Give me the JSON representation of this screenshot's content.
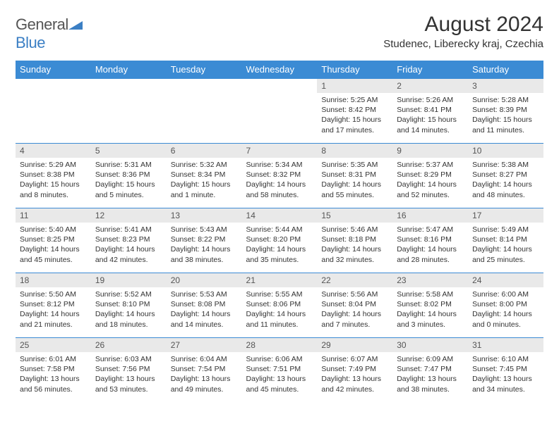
{
  "logo": {
    "word1": "General",
    "word2": "Blue"
  },
  "title": "August 2024",
  "location": "Studenec, Liberecky kraj, Czechia",
  "colors": {
    "header_bg": "#3b8bd4",
    "header_text": "#ffffff",
    "daynum_bg": "#e9e9e9",
    "border": "#3b8bd4",
    "text": "#333333",
    "logo_gray": "#555555",
    "logo_blue": "#3b7fc4"
  },
  "day_headers": [
    "Sunday",
    "Monday",
    "Tuesday",
    "Wednesday",
    "Thursday",
    "Friday",
    "Saturday"
  ],
  "weeks": [
    [
      {
        "empty": true
      },
      {
        "empty": true
      },
      {
        "empty": true
      },
      {
        "empty": true
      },
      {
        "n": "1",
        "sr": "5:25 AM",
        "ss": "8:42 PM",
        "dl": "15 hours and 17 minutes."
      },
      {
        "n": "2",
        "sr": "5:26 AM",
        "ss": "8:41 PM",
        "dl": "15 hours and 14 minutes."
      },
      {
        "n": "3",
        "sr": "5:28 AM",
        "ss": "8:39 PM",
        "dl": "15 hours and 11 minutes."
      }
    ],
    [
      {
        "n": "4",
        "sr": "5:29 AM",
        "ss": "8:38 PM",
        "dl": "15 hours and 8 minutes."
      },
      {
        "n": "5",
        "sr": "5:31 AM",
        "ss": "8:36 PM",
        "dl": "15 hours and 5 minutes."
      },
      {
        "n": "6",
        "sr": "5:32 AM",
        "ss": "8:34 PM",
        "dl": "15 hours and 1 minute."
      },
      {
        "n": "7",
        "sr": "5:34 AM",
        "ss": "8:32 PM",
        "dl": "14 hours and 58 minutes."
      },
      {
        "n": "8",
        "sr": "5:35 AM",
        "ss": "8:31 PM",
        "dl": "14 hours and 55 minutes."
      },
      {
        "n": "9",
        "sr": "5:37 AM",
        "ss": "8:29 PM",
        "dl": "14 hours and 52 minutes."
      },
      {
        "n": "10",
        "sr": "5:38 AM",
        "ss": "8:27 PM",
        "dl": "14 hours and 48 minutes."
      }
    ],
    [
      {
        "n": "11",
        "sr": "5:40 AM",
        "ss": "8:25 PM",
        "dl": "14 hours and 45 minutes."
      },
      {
        "n": "12",
        "sr": "5:41 AM",
        "ss": "8:23 PM",
        "dl": "14 hours and 42 minutes."
      },
      {
        "n": "13",
        "sr": "5:43 AM",
        "ss": "8:22 PM",
        "dl": "14 hours and 38 minutes."
      },
      {
        "n": "14",
        "sr": "5:44 AM",
        "ss": "8:20 PM",
        "dl": "14 hours and 35 minutes."
      },
      {
        "n": "15",
        "sr": "5:46 AM",
        "ss": "8:18 PM",
        "dl": "14 hours and 32 minutes."
      },
      {
        "n": "16",
        "sr": "5:47 AM",
        "ss": "8:16 PM",
        "dl": "14 hours and 28 minutes."
      },
      {
        "n": "17",
        "sr": "5:49 AM",
        "ss": "8:14 PM",
        "dl": "14 hours and 25 minutes."
      }
    ],
    [
      {
        "n": "18",
        "sr": "5:50 AM",
        "ss": "8:12 PM",
        "dl": "14 hours and 21 minutes."
      },
      {
        "n": "19",
        "sr": "5:52 AM",
        "ss": "8:10 PM",
        "dl": "14 hours and 18 minutes."
      },
      {
        "n": "20",
        "sr": "5:53 AM",
        "ss": "8:08 PM",
        "dl": "14 hours and 14 minutes."
      },
      {
        "n": "21",
        "sr": "5:55 AM",
        "ss": "8:06 PM",
        "dl": "14 hours and 11 minutes."
      },
      {
        "n": "22",
        "sr": "5:56 AM",
        "ss": "8:04 PM",
        "dl": "14 hours and 7 minutes."
      },
      {
        "n": "23",
        "sr": "5:58 AM",
        "ss": "8:02 PM",
        "dl": "14 hours and 3 minutes."
      },
      {
        "n": "24",
        "sr": "6:00 AM",
        "ss": "8:00 PM",
        "dl": "14 hours and 0 minutes."
      }
    ],
    [
      {
        "n": "25",
        "sr": "6:01 AM",
        "ss": "7:58 PM",
        "dl": "13 hours and 56 minutes."
      },
      {
        "n": "26",
        "sr": "6:03 AM",
        "ss": "7:56 PM",
        "dl": "13 hours and 53 minutes."
      },
      {
        "n": "27",
        "sr": "6:04 AM",
        "ss": "7:54 PM",
        "dl": "13 hours and 49 minutes."
      },
      {
        "n": "28",
        "sr": "6:06 AM",
        "ss": "7:51 PM",
        "dl": "13 hours and 45 minutes."
      },
      {
        "n": "29",
        "sr": "6:07 AM",
        "ss": "7:49 PM",
        "dl": "13 hours and 42 minutes."
      },
      {
        "n": "30",
        "sr": "6:09 AM",
        "ss": "7:47 PM",
        "dl": "13 hours and 38 minutes."
      },
      {
        "n": "31",
        "sr": "6:10 AM",
        "ss": "7:45 PM",
        "dl": "13 hours and 34 minutes."
      }
    ]
  ],
  "labels": {
    "sunrise": "Sunrise:",
    "sunset": "Sunset:",
    "daylight": "Daylight:"
  }
}
